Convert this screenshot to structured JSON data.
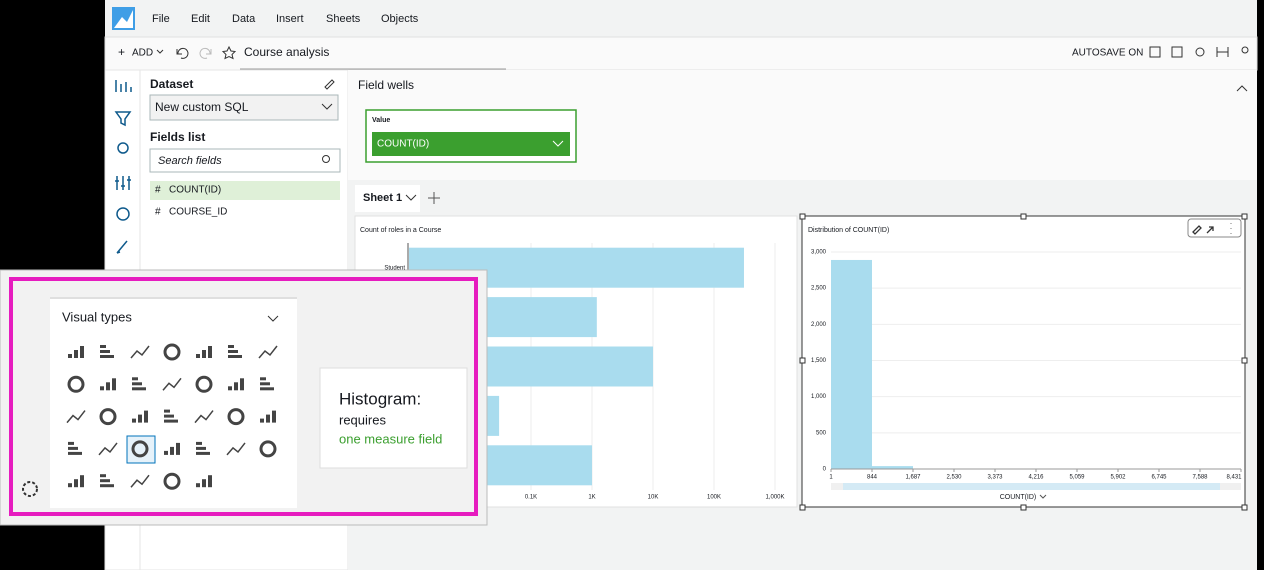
{
  "menu": [
    "File",
    "Edit",
    "Data",
    "Insert",
    "Sheets",
    "Objects"
  ],
  "toolbar": {
    "add": "ADD",
    "analysis_name": "Course analysis",
    "autosave": "AUTOSAVE ON"
  },
  "dataset_panel": {
    "title": "Dataset",
    "dataset": "New custom SQL",
    "fields_title": "Fields list",
    "search_placeholder": "Search fields",
    "fields": [
      "COUNT(ID)",
      "COURSE_ID"
    ]
  },
  "field_wells": {
    "title": "Field wells",
    "well_label": "Value",
    "well_field": "COUNT(ID)"
  },
  "sheet_tab": "Sheet 1",
  "visuals": [
    {
      "type": "bar",
      "orientation": "horizontal",
      "title": "Count of roles in a Course",
      "categories": [
        "Student",
        null,
        null,
        null,
        null
      ],
      "values": [
        310000,
        1200,
        10000,
        30,
        1000
      ],
      "color": "#a9dcee",
      "log_scale": true,
      "xlim": [
        1,
        1000000
      ],
      "xticks": [
        {
          "value": 100,
          "label": "0.1K"
        },
        {
          "value": 1000,
          "label": "1K"
        },
        {
          "value": 10000,
          "label": "10K"
        },
        {
          "value": 100000,
          "label": "100K"
        },
        {
          "value": 1000000,
          "label": "1,000K"
        }
      ],
      "grid": true
    },
    {
      "type": "histogram",
      "title": "Distribution of COUNT(ID)",
      "xlabel": "COUNT(ID)",
      "bins": [
        1,
        844,
        1687,
        2530,
        3373,
        4216,
        5059,
        5902,
        6745,
        7588,
        8431
      ],
      "counts": [
        2890,
        40,
        0,
        0,
        0,
        0,
        0,
        0,
        0,
        0
      ],
      "color": "#a9dcee",
      "xlim": [
        1,
        8431
      ],
      "xticks": [
        1,
        844,
        {
          "value": 1687,
          "label": "1,687"
        },
        {
          "value": 2530,
          "label": "2,530"
        },
        {
          "value": 3373,
          "label": "3,373"
        },
        {
          "value": 4216,
          "label": "4,216"
        },
        {
          "value": 5059,
          "label": "5,059"
        },
        {
          "value": 5902,
          "label": "5,902"
        },
        {
          "value": 6745,
          "label": "6,745"
        },
        {
          "value": 7588,
          "label": "7,588"
        },
        {
          "value": 8431,
          "label": "8,431"
        }
      ],
      "ylim": [
        0,
        3000
      ],
      "yticks": [
        0,
        500,
        {
          "value": 1000,
          "label": "1,000"
        },
        {
          "value": 1500,
          "label": "1,500"
        },
        {
          "value": 2000,
          "label": "2,000"
        },
        {
          "value": 2500,
          "label": "2,500"
        },
        {
          "value": 3000,
          "label": "3,000"
        }
      ],
      "grid": true
    }
  ],
  "visual_types_panel": {
    "title": "Visual types",
    "tooltip": {
      "title": "Histogram:",
      "line1": "requires",
      "line2": "one measure field"
    }
  }
}
